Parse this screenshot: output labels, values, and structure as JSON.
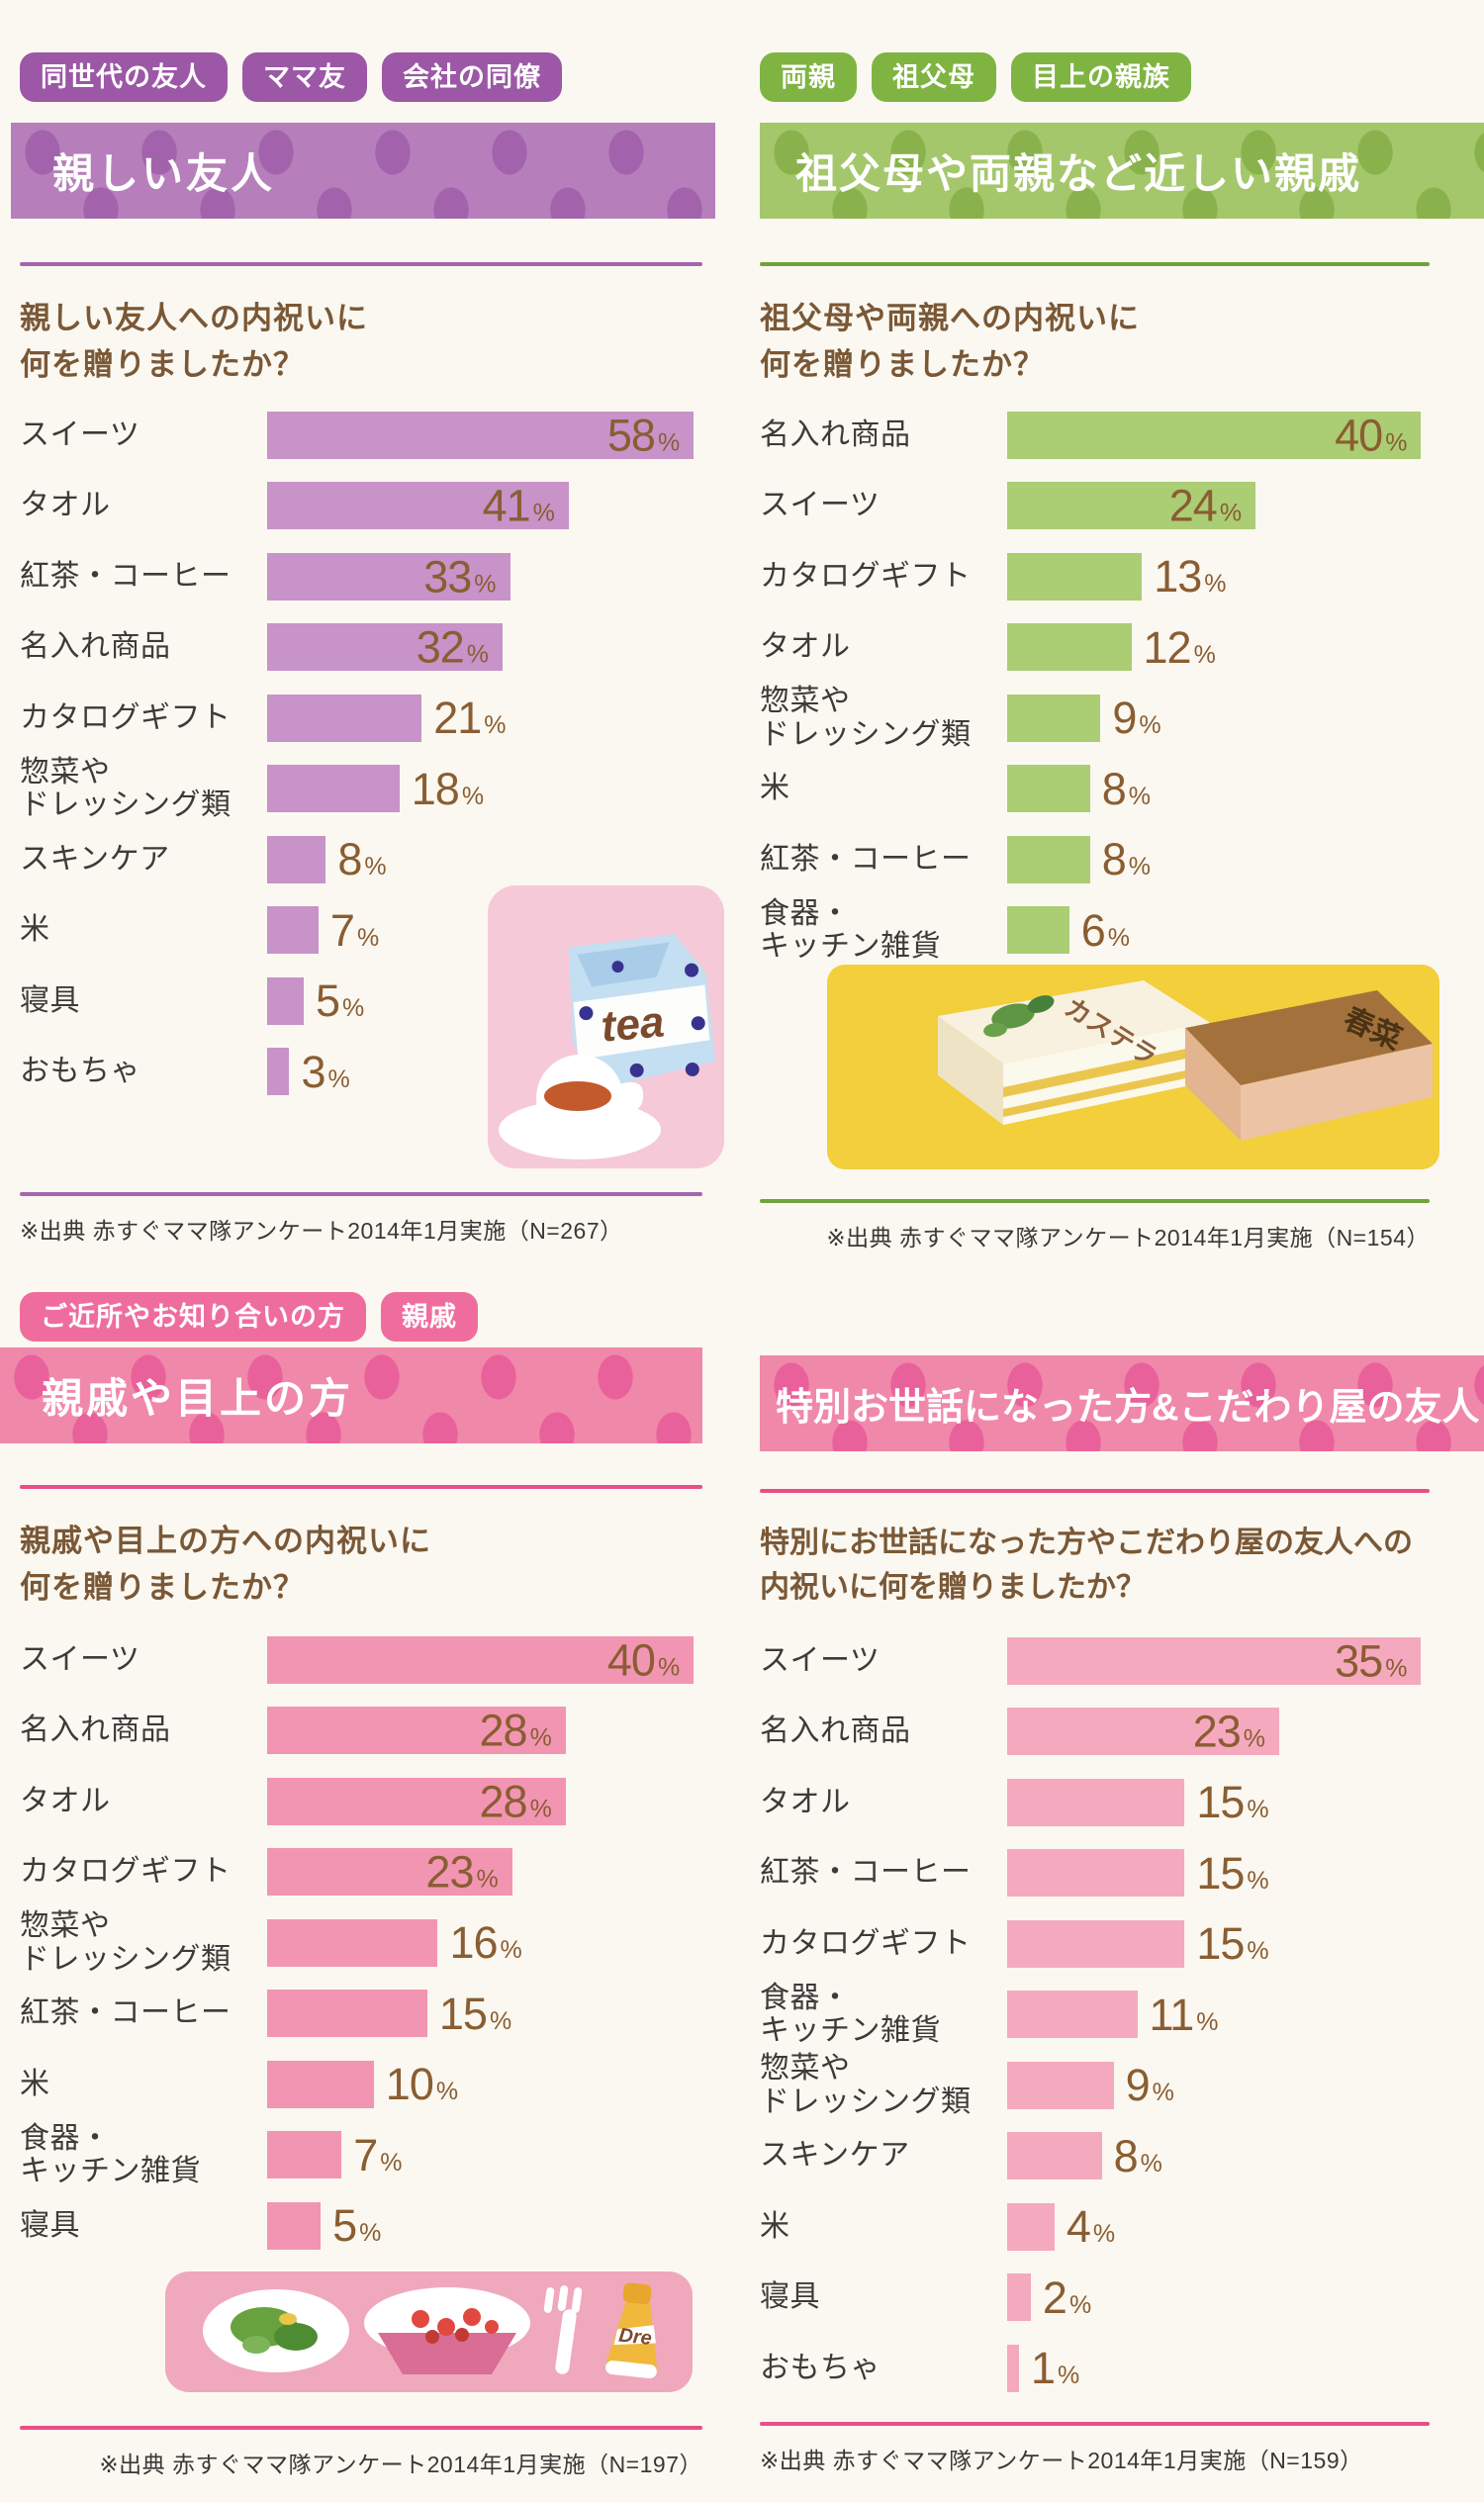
{
  "page": {
    "background": "#FBF8F1"
  },
  "text_colors": {
    "label": "#3E3A39",
    "question": "#7A5836",
    "value": "#8A5D32",
    "source": "#3B3836"
  },
  "sections": [
    {
      "banner": "親しい友人",
      "tags": [
        "同世代の友人",
        "ママ友",
        "会社の同僚"
      ],
      "question": "親しい友人への内祝いに\n何を贈りましたか？",
      "source": "※出典 赤すぐママ隊アンケート2014年1月実施（N=267）",
      "theme": {
        "tag_bg": "#9C57A6",
        "banner_bg": "#B67FBB",
        "banner_dot": "#A263AC",
        "bar": "#C793C8",
        "line": "#A566AE"
      },
      "illustration": {
        "name": "tea-and-cup",
        "label": "tea"
      }
    },
    {
      "banner": "祖父母や両親など近しい親戚",
      "tags": [
        "両親",
        "祖父母",
        "目上の親族"
      ],
      "question": "祖父母や両親への内祝いに\n何を贈りましたか？",
      "source": "※出典 赤すぐママ隊アンケート2014年1月実施（N=154）",
      "theme": {
        "tag_bg": "#7FB442",
        "banner_bg": "#A5C76B",
        "banner_dot": "#8AB24C",
        "bar": "#ABCD73",
        "line": "#6FA33C"
      },
      "illustration": {
        "name": "castella-boxes",
        "labels": [
          "カステラ",
          "春菜"
        ]
      }
    },
    {
      "banner": "親戚や目上の方",
      "tags": [
        "ご近所やお知り合いの方",
        "親戚"
      ],
      "question": "親戚や目上の方への内祝いに\n何を贈りましたか？",
      "source": "※出典 赤すぐママ隊アンケート2014年1月実施（N=197）",
      "theme": {
        "tag_bg": "#EF6D9E",
        "banner_bg": "#F088AA",
        "banner_dot": "#E9619A",
        "bar": "#F295B3",
        "line": "#E84E88"
      },
      "illustration": {
        "name": "meal-tray",
        "label": "Dre"
      }
    },
    {
      "banner": "特別お世話になった方&こだわり屋の友人",
      "tags": [],
      "question": "特別にお世話になった方やこだわり屋の友人への\n内祝いに何を贈りましたか？",
      "source": "※出典 赤すぐママ隊アンケート2014年1月実施（N=159）",
      "theme": {
        "tag_bg": "#EF6D9E",
        "banner_bg": "#F088AA",
        "banner_dot": "#E9619A",
        "bar": "#F5A9BE",
        "line": "#E84E88"
      },
      "illustration": null
    }
  ],
  "chart_data": [
    {
      "type": "bar",
      "orientation": "horizontal",
      "title": "親しい友人への内祝いに何を贈りましたか？",
      "unit": "%",
      "scale_max": 58,
      "xlim": [
        0,
        59
      ],
      "categories": [
        "スイーツ",
        "タオル",
        "紅茶・コーヒー",
        "名入れ商品",
        "カタログギフト",
        "惣菜や\nドレッシング類",
        "スキンケア",
        "米",
        "寝具",
        "おもちゃ"
      ],
      "values": [
        58,
        41,
        33,
        32,
        21,
        18,
        8,
        7,
        5,
        3
      ]
    },
    {
      "type": "bar",
      "orientation": "horizontal",
      "title": "祖父母や両親への内祝いに何を贈りましたか？",
      "unit": "%",
      "scale_max": 40,
      "xlim": [
        0,
        41
      ],
      "categories": [
        "名入れ商品",
        "スイーツ",
        "カタログギフト",
        "タオル",
        "惣菜や\nドレッシング類",
        "米",
        "紅茶・コーヒー",
        "食器・\nキッチン雑貨"
      ],
      "values": [
        40,
        24,
        13,
        12,
        9,
        8,
        8,
        6
      ]
    },
    {
      "type": "bar",
      "orientation": "horizontal",
      "title": "親戚や目上の方への内祝いに何を贈りましたか？",
      "unit": "%",
      "scale_max": 40,
      "xlim": [
        0,
        41
      ],
      "categories": [
        "スイーツ",
        "名入れ商品",
        "タオル",
        "カタログギフト",
        "惣菜や\nドレッシング類",
        "紅茶・コーヒー",
        "米",
        "食器・\nキッチン雑貨",
        "寝具"
      ],
      "values": [
        40,
        28,
        28,
        23,
        16,
        15,
        10,
        7,
        5
      ]
    },
    {
      "type": "bar",
      "orientation": "horizontal",
      "title": "特別にお世話になった方やこだわり屋の友人への内祝いに何を贈りましたか？",
      "unit": "%",
      "scale_max": 35,
      "xlim": [
        0,
        36
      ],
      "categories": [
        "スイーツ",
        "名入れ商品",
        "タオル",
        "紅茶・コーヒー",
        "カタログギフト",
        "食器・\nキッチン雑貨",
        "惣菜や\nドレッシング類",
        "スキンケア",
        "米",
        "寝具",
        "おもちゃ"
      ],
      "values": [
        35,
        23,
        15,
        15,
        15,
        11,
        9,
        8,
        4,
        2,
        1
      ]
    }
  ]
}
